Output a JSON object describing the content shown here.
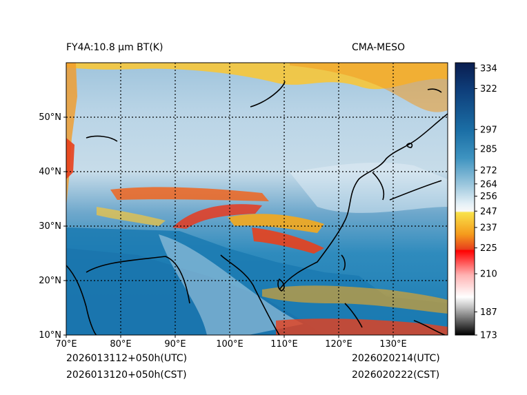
{
  "header": {
    "product": "FY4A:10.8 µm BT(K)",
    "model": "CMA-MESO"
  },
  "map": {
    "lon_ticks": [
      "70°E",
      "80°E",
      "90°E",
      "100°E",
      "110°E",
      "120°E",
      "130°E"
    ],
    "lat_ticks": [
      "10°N",
      "20°N",
      "30°N",
      "40°N",
      "50°N"
    ]
  },
  "colorbar": {
    "min": 173,
    "max": 340,
    "ticks": [
      "334",
      "322",
      "297",
      "285",
      "272",
      "264",
      "256",
      "247",
      "237",
      "225",
      "210",
      "187",
      "173"
    ],
    "tick_values": [
      334,
      322,
      297,
      285,
      272,
      264,
      256,
      247,
      237,
      225,
      210,
      187,
      173
    ]
  },
  "footer": {
    "init_utc": "2026013112+050h(UTC)",
    "init_cst": "2026013120+050h(CST)",
    "valid_utc": "2026020214(UTC)",
    "valid_cst": "2026020222(CST)"
  },
  "colors": {
    "ocean": "#1a7fb4",
    "cloud_light": "#c9e0ee",
    "cold_orange": "#f5a81c",
    "cold_red": "#e83a1e",
    "coast": "#000000"
  }
}
